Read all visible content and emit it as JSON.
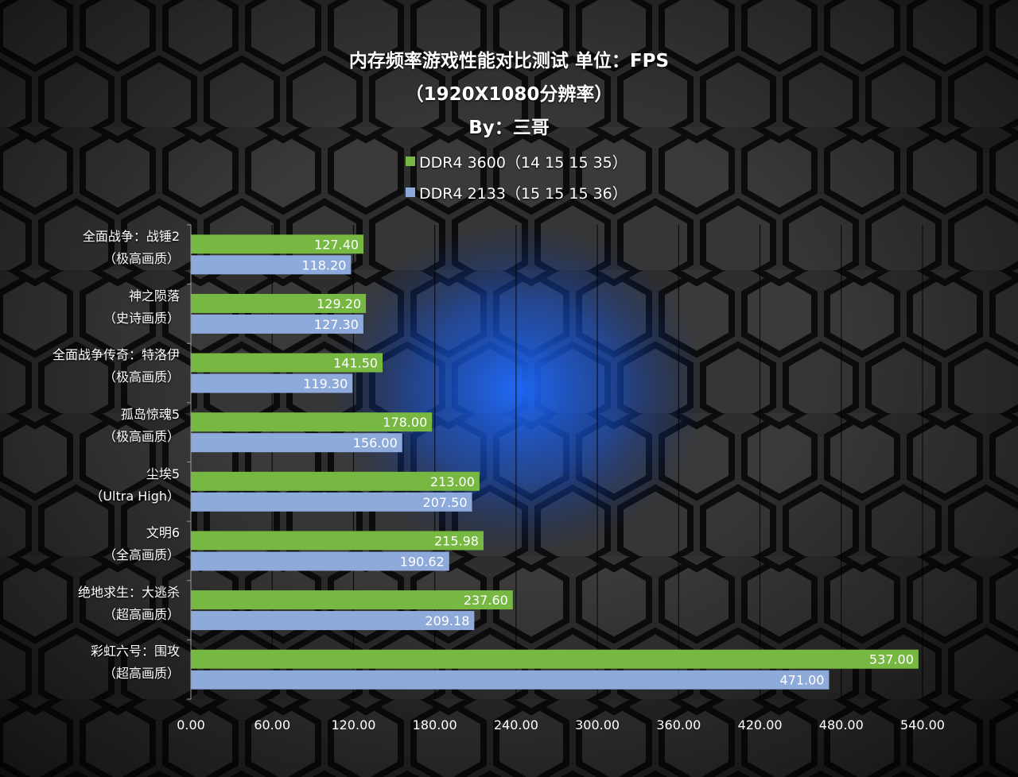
{
  "colors": {
    "series1": "#77b843",
    "series2": "#8eaadb",
    "background": "#1c1c1c",
    "hex_line": "#0a0a0a",
    "glow": "#1a66ff"
  },
  "title": {
    "line1": "内存频率游戏性能对比测试 单位：FPS",
    "line2": "（1920X1080分辨率）",
    "line3": "By：三哥"
  },
  "legend": [
    {
      "label": "DDR4 3600（14 15 15 35）"
    },
    {
      "label": "DDR4 2133（15 15 15 36）"
    }
  ],
  "chart_data": {
    "type": "bar",
    "orientation": "horizontal",
    "title": "内存频率游戏性能对比测试 单位：FPS",
    "subtitle": "（1920X1080分辨率） By：三哥",
    "categories": [
      {
        "name": "全面战争：战锤2",
        "setting": "（极高画质）"
      },
      {
        "name": "神之陨落",
        "setting": "（史诗画质）"
      },
      {
        "name": "全面战争传奇：特洛伊",
        "setting": "（极高画质）"
      },
      {
        "name": "孤岛惊魂5",
        "setting": "（极高画质）"
      },
      {
        "name": "尘埃5",
        "setting": "（Ultra High）"
      },
      {
        "name": "文明6",
        "setting": "（全高画质）"
      },
      {
        "name": "绝地求生：大逃杀",
        "setting": "（超高画质）"
      },
      {
        "name": "彩虹六号：围攻",
        "setting": "（超高画质）"
      }
    ],
    "series": [
      {
        "name": "DDR4 3600（14 15 15 35）",
        "values": [
          127.4,
          129.2,
          141.5,
          178.0,
          213.0,
          215.98,
          237.6,
          537.0
        ],
        "labels": [
          "127.40",
          "129.20",
          "141.50",
          "178.00",
          "213.00",
          "215.98",
          "237.60",
          "537.00"
        ]
      },
      {
        "name": "DDR4 2133（15 15 15 36）",
        "values": [
          118.2,
          127.3,
          119.3,
          156.0,
          207.5,
          190.62,
          209.18,
          471.0
        ],
        "labels": [
          "118.20",
          "127.30",
          "119.30",
          "156.00",
          "207.50",
          "190.62",
          "209.18",
          "471.00"
        ]
      }
    ],
    "xlim": [
      0,
      540
    ],
    "xticks": [
      "0.00",
      "60.00",
      "120.00",
      "180.00",
      "240.00",
      "300.00",
      "360.00",
      "420.00",
      "480.00",
      "540.00"
    ],
    "xtick_values": [
      0,
      60,
      120,
      180,
      240,
      300,
      360,
      420,
      480,
      540
    ],
    "grid": true,
    "legend_position": "top-center"
  }
}
